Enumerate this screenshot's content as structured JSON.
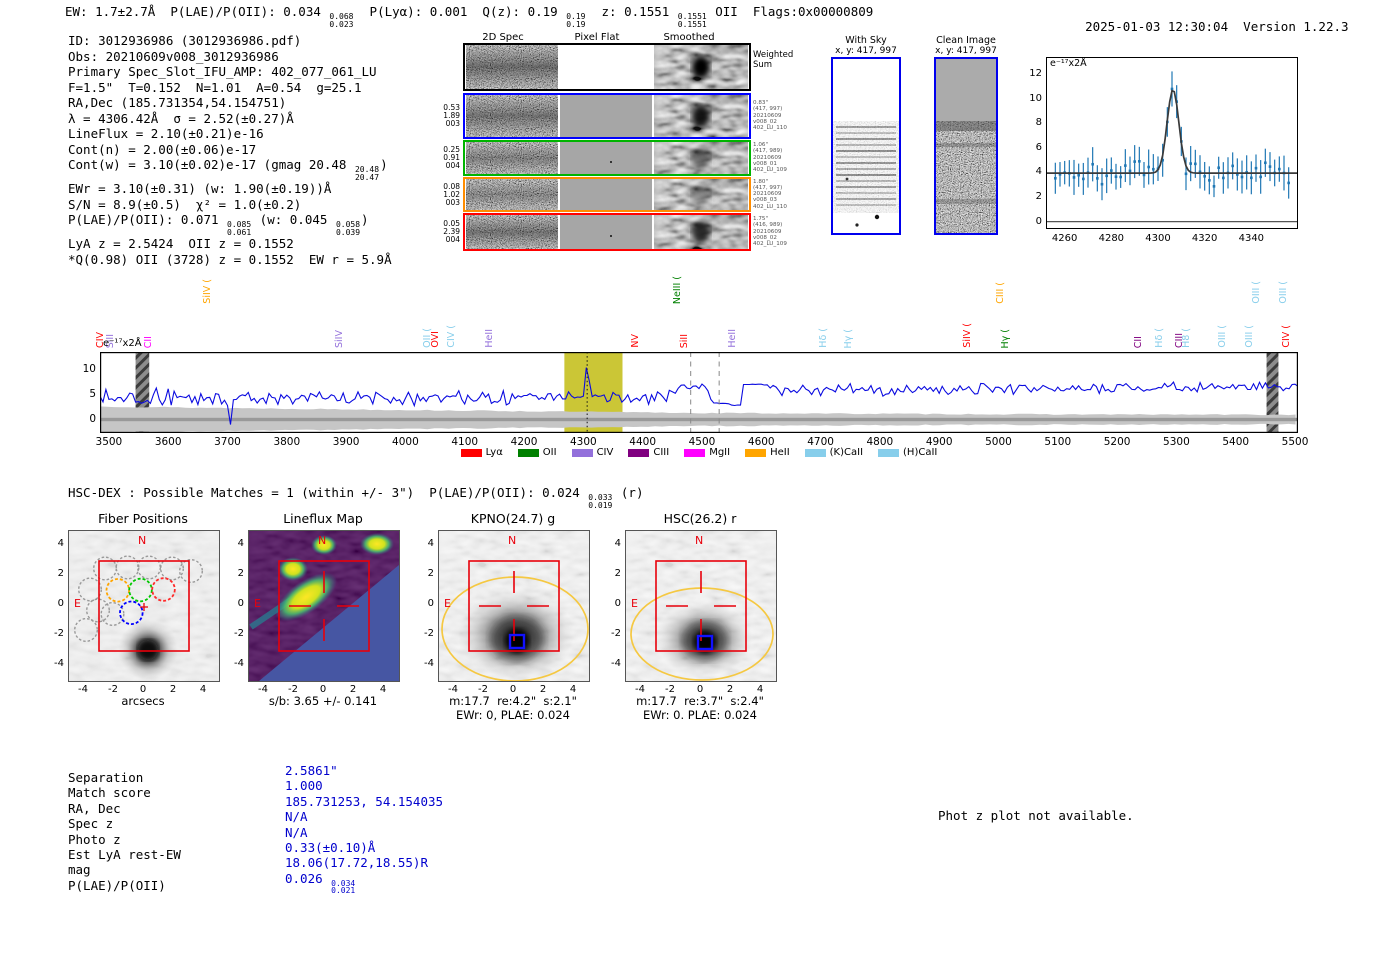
{
  "header": {
    "left": "EW: 1.7±2.7Å  P(LAE)/P(OII): 0.034 {0.068|0.023}  P(Lyα): 0.001  Q(z): 0.19 {0.19|0.19}  z: 0.1551 {0.1551|0.1551} OII  Flags:0x00000809",
    "datetime": "2025-01-03 12:30:04",
    "version": "Version 1.22.3"
  },
  "info_lines": [
    "ID: 3012936986 (3012936986.pdf)",
    "Obs: 20210609v008_3012936986",
    "Primary Spec_Slot_IFU_AMP: 402_077_061_LU",
    "F=1.5\"  T=0.152  N=1.01  A=0.54  g=25.1",
    "RA,Dec (185.731354,54.154751)",
    "λ = 4306.42Å  σ = 2.52(±0.27)Å",
    "LineFlux = 2.10(±0.21)e-16",
    "Cont(n) = 2.00(±0.06)e-17",
    "Cont(w) = 3.10(±0.02)e-17 (gmag 20.48 {20.48|20.47})",
    "EWr = 3.10(±0.31) (w: 1.90(±0.19))Å",
    "S/N = 8.9(±0.5)  χ² = 1.0(±0.2)",
    "P(LAE)/P(OII): 0.071 {0.085|0.061} (w: 0.045 {0.058|0.039})",
    "LyA z = 2.5424  OII z = 0.1552",
    "*Q(0.98) OII (3728) z = 0.1552  EW r = 5.9Å"
  ],
  "spec2d": {
    "col_titles": [
      "2D Spec",
      "Pixel Flat",
      "Smoothed"
    ],
    "rows": [
      {
        "color": "#000000",
        "left": [],
        "right": [
          "Weighted",
          "Sum"
        ],
        "right_big": true
      },
      {
        "color": "#0000ff",
        "left": [
          "0.53",
          "1.89",
          "003"
        ],
        "right": [
          "0.83\"",
          "(417, 997)",
          "20210609",
          "v008_02",
          "402_LU_110"
        ]
      },
      {
        "color": "#00b400",
        "left": [
          "0.25",
          "0.91",
          "004"
        ],
        "right": [
          "1.06\"",
          "(417, 989)",
          "20210609",
          "v008_01",
          "402_LU_109"
        ]
      },
      {
        "color": "#ff8c00",
        "left": [
          "0.08",
          "1.02",
          "003"
        ],
        "right": [
          "1.80\"",
          "(417, 997)",
          "20210609",
          "v008_03",
          "402_LU_110"
        ]
      },
      {
        "color": "#ff0000",
        "left": [
          "0.05",
          "2.39",
          "004"
        ],
        "right": [
          "1.75\"",
          "(416, 989)",
          "20210609",
          "v008_02",
          "402_LU_109"
        ]
      }
    ]
  },
  "skypanels": {
    "with_sky": {
      "title": "With Sky",
      "subtitle": "x, y: 417, 997"
    },
    "clean": {
      "title": "Clean Image",
      "subtitle": "x, y: 417, 997"
    }
  },
  "hsc_line": "HSC-DEX : Possible Matches = 1 (within +/- 3\")  P(LAE)/P(OII): 0.024 {0.033|0.019} (r)",
  "chart_data": [
    {
      "type": "scatter",
      "name": "line-fit-inset",
      "ylabel_inplot": "e⁻¹⁷x2Å",
      "x_ticks": [
        4260,
        4280,
        4300,
        4320,
        4340
      ],
      "y_ticks": [
        0,
        2,
        4,
        6,
        8,
        10,
        12
      ],
      "x_range": [
        4252,
        4360
      ],
      "y_range": [
        -0.6,
        13.4
      ],
      "baseline": 3.95,
      "noise_sigma": 0.85,
      "errorbar": 1.15,
      "step": 2,
      "gaussian": {
        "center": 4306.42,
        "sigma": 2.52,
        "amplitude": 6.8
      },
      "seed": 7
    },
    {
      "type": "line",
      "name": "full-spectrum",
      "ylabel_inplot": "e⁻¹⁷x2Å",
      "x_ticks": [
        3500,
        3600,
        3700,
        3800,
        3900,
        4000,
        4100,
        4200,
        4300,
        4400,
        4500,
        4600,
        4700,
        4800,
        4900,
        5000,
        5100,
        5200,
        5300,
        5400,
        5500
      ],
      "y_ticks": [
        0,
        5,
        10
      ],
      "x_range": [
        3485,
        5505
      ],
      "y_range": [
        -2.7,
        13.5
      ],
      "anchors": [
        [
          3485,
          4.25
        ],
        [
          4448,
          4.45
        ],
        [
          4455,
          5.6
        ],
        [
          4470,
          6.8
        ],
        [
          4480,
          6.3
        ],
        [
          4500,
          6.9
        ],
        [
          4512,
          5.8
        ],
        [
          4518,
          3.25
        ],
        [
          4544,
          3.25
        ],
        [
          4547,
          2.85
        ],
        [
          4566,
          2.85
        ],
        [
          4569,
          7.05
        ],
        [
          4612,
          7.0
        ],
        [
          4616,
          5.95
        ],
        [
          4800,
          5.9
        ],
        [
          5100,
          6.3
        ],
        [
          5500,
          6.55
        ]
      ],
      "noise_profile": [
        [
          3485,
          1.35
        ],
        [
          4260,
          1.2
        ],
        [
          4290,
          0.5
        ],
        [
          4322,
          0.5
        ],
        [
          4340,
          1.15
        ],
        [
          4448,
          1.15
        ],
        [
          4452,
          0.6
        ],
        [
          4515,
          0.6
        ],
        [
          4518,
          0.08
        ],
        [
          4566,
          0.08
        ],
        [
          4569,
          0.08
        ],
        [
          4612,
          0.08
        ],
        [
          4616,
          0.9
        ],
        [
          5500,
          0.8
        ]
      ],
      "err_band": [
        [
          3485,
          2.6
        ],
        [
          3700,
          2.3
        ],
        [
          4000,
          1.9
        ],
        [
          4500,
          1.3
        ],
        [
          5000,
          1.05
        ],
        [
          5500,
          0.95
        ]
      ],
      "gaussian": {
        "center": 4306.42,
        "sigma": 2.6,
        "amplitude": 7.0
      },
      "yellow_band": [
        4268,
        4366
      ],
      "line_center": 4306.42,
      "dashed_lines": [
        4481,
        4529
      ],
      "hatch_bands": [
        [
          3545,
          3568
        ],
        [
          5452,
          5472
        ]
      ],
      "seed": 13
    }
  ],
  "emission_labels": [
    {
      "wl": 3498,
      "text": "CIV",
      "color": "#ff0000",
      "row": "low"
    },
    {
      "wl": 3516,
      "text": "SiII",
      "color": "#9370db",
      "row": "low"
    },
    {
      "wl": 3579,
      "text": "CII",
      "color": "#ff00ff",
      "row": "low"
    },
    {
      "wl": 3679,
      "text": "SiIV (",
      "color": "#ffa500",
      "row": "high"
    },
    {
      "wl": 3901,
      "text": "SiIV",
      "color": "#9370db",
      "row": "low"
    },
    {
      "wl": 4050,
      "text": "OII (",
      "color": "#87ceeb",
      "row": "low"
    },
    {
      "wl": 4064,
      "text": "OVI",
      "color": "#ff0000",
      "row": "low"
    },
    {
      "wl": 4090,
      "text": "CIV (",
      "color": "#87ceeb",
      "row": "low"
    },
    {
      "wl": 4154,
      "text": "HeII",
      "color": "#9370db",
      "row": "low"
    },
    {
      "wl": 4401,
      "text": "NV",
      "color": "#ff0000",
      "row": "low"
    },
    {
      "wl": 4471,
      "text": "NeIII (",
      "color": "#008000",
      "row": "high"
    },
    {
      "wl": 4484,
      "text": "SiII",
      "color": "#ff0000",
      "row": "low"
    },
    {
      "wl": 4564,
      "text": "HeII",
      "color": "#9370db",
      "row": "low"
    },
    {
      "wl": 4717,
      "text": "Hδ (",
      "color": "#87ceeb",
      "row": "low"
    },
    {
      "wl": 4760,
      "text": "Hγ (",
      "color": "#87ceeb",
      "row": "low"
    },
    {
      "wl": 4960,
      "text": "SiIV (",
      "color": "#ff0000",
      "row": "low"
    },
    {
      "wl": 5016,
      "text": "CIII (",
      "color": "#ffa500",
      "row": "high"
    },
    {
      "wl": 5024,
      "text": "Hγ (",
      "color": "#008000",
      "row": "low"
    },
    {
      "wl": 5248,
      "text": "CII",
      "color": "#800080",
      "row": "low"
    },
    {
      "wl": 5284,
      "text": "Hδ (",
      "color": "#87ceeb",
      "row": "low"
    },
    {
      "wl": 5318,
      "text": "CIII",
      "color": "#800080",
      "row": "low"
    },
    {
      "wl": 5330,
      "text": "H8 (",
      "color": "#87ceeb",
      "row": "low"
    },
    {
      "wl": 5390,
      "text": "OIII (",
      "color": "#87ceeb",
      "row": "low"
    },
    {
      "wl": 5436,
      "text": "OIII (",
      "color": "#87ceeb",
      "row": "low"
    },
    {
      "wl": 5448,
      "text": "OIII (",
      "color": "#87ceeb",
      "row": "high"
    },
    {
      "wl": 5494,
      "text": "OIII (",
      "color": "#87ceeb",
      "row": "high"
    },
    {
      "wl": 5499,
      "text": "CIV (",
      "color": "#ff0000",
      "row": "low"
    }
  ],
  "legend": [
    {
      "label": "Lyα",
      "color": "#ff0000"
    },
    {
      "label": "OII",
      "color": "#008000"
    },
    {
      "label": "CIV",
      "color": "#9370db"
    },
    {
      "label": "CIII",
      "color": "#800080"
    },
    {
      "label": "MgII",
      "color": "#ff00ff"
    },
    {
      "label": "HeII",
      "color": "#ffa500"
    },
    {
      "label": "(K)CaII",
      "color": "#87ceeb"
    },
    {
      "label": "(H)CaII",
      "color": "#87ceeb"
    }
  ],
  "cutouts": [
    {
      "title": "Fiber Positions",
      "caption1": "arcsecs",
      "caption2": ""
    },
    {
      "title": "Lineflux Map",
      "caption1": "s/b: 3.65 +/- 0.141",
      "caption2": ""
    },
    {
      "title": "KPNO(24.7) g",
      "caption1": "m:17.7  re:4.2\"  s:2.1\"",
      "caption2": "EWr: 0, PLAE: 0.024"
    },
    {
      "title": "HSC(26.2) r",
      "caption1": "m:17.7  re:3.7\"  s:2.4\"",
      "caption2": "EWr: 0. PLAE: 0.024"
    }
  ],
  "axis": {
    "panel_ticks": [
      "-4",
      "-2",
      "0",
      "2",
      "4"
    ],
    "panel_tick_values": [
      -4,
      -2,
      0,
      2,
      4
    ],
    "compass": {
      "n": "N",
      "e": "E"
    }
  },
  "match_table": {
    "labels": [
      "Separation",
      "Match score",
      "RA, Dec",
      "Spec z",
      "Photo z",
      "Est LyA rest-EW",
      "mag",
      "P(LAE)/P(OII)"
    ],
    "values": [
      "2.5861\"",
      "1.000",
      "185.731253, 54.154035",
      "N/A",
      "N/A",
      "0.33(±0.10)Å",
      "18.06(17.72,18.55)R",
      "0.026 {0.034|0.021}"
    ]
  },
  "photz_note": "Phot z plot not available.",
  "colors": {
    "value_text": "#0000cd",
    "spectrum_line": "#0a0ae0",
    "inset_points": "#1f77b4",
    "fit_line": "#3a3a3a",
    "box_red": "#e8000b",
    "ellipse_yellow": "#f5c842",
    "yellow_band": "#c8c32b"
  }
}
